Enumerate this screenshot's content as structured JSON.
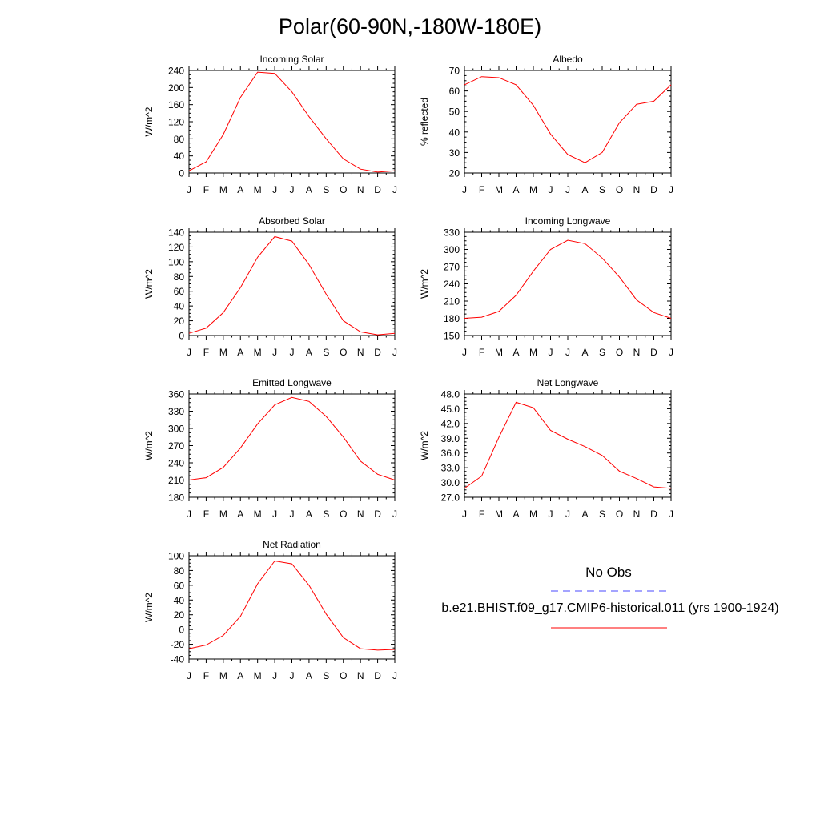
{
  "title": "Polar(60-90N,-180W-180E)",
  "months": [
    "J",
    "F",
    "M",
    "A",
    "M",
    "J",
    "J",
    "A",
    "S",
    "O",
    "N",
    "D",
    "J"
  ],
  "legend": {
    "obs_label": "No Obs",
    "model_label": "b.e21.BHIST.f09_g17.CMIP6-historical.011 (yrs 1900-1924)",
    "obs_color": "#4a4aff",
    "model_color": "#ff0000"
  },
  "chart_data": [
    {
      "type": "line",
      "title": "Incoming Solar",
      "ylabel": "W/m^2",
      "ylim": [
        0,
        240
      ],
      "yticks": [
        "0",
        "40",
        "80",
        "120",
        "160",
        "200",
        "240"
      ],
      "series": [
        {
          "name": "b.e21.BHIST.f09_g17.CMIP6-historical.011 (yrs 1900-1924)",
          "values": [
            5,
            26,
            90,
            177,
            236,
            233,
            190,
            132,
            80,
            33,
            9,
            2,
            5
          ]
        }
      ]
    },
    {
      "type": "line",
      "title": "Albedo",
      "ylabel": "% reflected",
      "ylim": [
        20,
        70
      ],
      "yticks": [
        "20",
        "30",
        "40",
        "50",
        "60",
        "70"
      ],
      "series": [
        {
          "name": "b.e21.BHIST.f09_g17.CMIP6-historical.011 (yrs 1900-1924)",
          "values": [
            63,
            67,
            66.5,
            63,
            53,
            39,
            29,
            25,
            30,
            44.5,
            53.5,
            55,
            63
          ]
        }
      ]
    },
    {
      "type": "line",
      "title": "Absorbed Solar",
      "ylabel": "W/m^2",
      "ylim": [
        0,
        140
      ],
      "yticks": [
        "0",
        "20",
        "40",
        "60",
        "80",
        "100",
        "120",
        "140"
      ],
      "series": [
        {
          "name": "b.e21.BHIST.f09_g17.CMIP6-historical.011 (yrs 1900-1924)",
          "values": [
            3,
            10,
            31,
            65,
            106,
            134,
            128,
            96,
            56,
            20,
            5,
            1,
            3
          ]
        }
      ]
    },
    {
      "type": "line",
      "title": "Incoming Longwave",
      "ylabel": "W/m^2",
      "ylim": [
        150,
        330
      ],
      "yticks": [
        "150",
        "180",
        "210",
        "240",
        "270",
        "300",
        "330"
      ],
      "series": [
        {
          "name": "b.e21.BHIST.f09_g17.CMIP6-historical.011 (yrs 1900-1924)",
          "values": [
            180,
            182,
            192,
            220,
            262,
            300,
            316,
            310,
            285,
            252,
            212,
            190,
            180
          ]
        }
      ]
    },
    {
      "type": "line",
      "title": "Emitted Longwave",
      "ylabel": "W/m^2",
      "ylim": [
        180,
        360
      ],
      "yticks": [
        "180",
        "210",
        "240",
        "270",
        "300",
        "330",
        "360"
      ],
      "series": [
        {
          "name": "b.e21.BHIST.f09_g17.CMIP6-historical.011 (yrs 1900-1924)",
          "values": [
            210,
            214,
            232,
            266,
            308,
            341,
            354,
            347,
            321,
            285,
            243,
            220,
            210
          ]
        }
      ]
    },
    {
      "type": "line",
      "title": "Net Longwave",
      "ylabel": "W/m^2",
      "ylim": [
        27,
        48
      ],
      "yticks": [
        "27.0",
        "30.0",
        "33.0",
        "36.0",
        "39.0",
        "42.0",
        "45.0",
        "48.0"
      ],
      "series": [
        {
          "name": "b.e21.BHIST.f09_g17.CMIP6-historical.011 (yrs 1900-1924)",
          "values": [
            28.8,
            31.3,
            39.2,
            46.3,
            45.2,
            40.6,
            38.8,
            37.3,
            35.5,
            32.3,
            30.8,
            29.1,
            28.8
          ]
        }
      ]
    },
    {
      "type": "line",
      "title": "Net Radiation",
      "ylabel": "W/m^2",
      "ylim": [
        -40,
        100
      ],
      "yticks": [
        "-40",
        "-20",
        "0",
        "20",
        "40",
        "60",
        "80",
        "100"
      ],
      "series": [
        {
          "name": "b.e21.BHIST.f09_g17.CMIP6-historical.011 (yrs 1900-1924)",
          "values": [
            -26,
            -21,
            -8,
            18,
            62,
            93,
            89,
            60,
            21,
            -11,
            -26,
            -28,
            -27
          ]
        }
      ]
    }
  ]
}
